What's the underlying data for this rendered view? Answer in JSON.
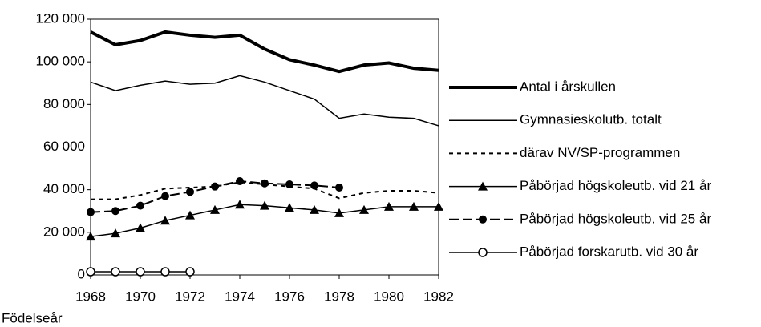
{
  "chart_data": {
    "type": "line",
    "x_label": "Födelseår",
    "x": [
      1968,
      1969,
      1970,
      1971,
      1972,
      1973,
      1974,
      1975,
      1976,
      1977,
      1978,
      1979,
      1980,
      1981,
      1982
    ],
    "xlim": [
      1968,
      1982
    ],
    "xticks": [
      1968,
      1970,
      1972,
      1974,
      1976,
      1978,
      1980,
      1982
    ],
    "ylim": [
      0,
      120000
    ],
    "yticks": [
      0,
      {
        "value": 20000,
        "label": "20 000"
      },
      {
        "value": 40000,
        "label": "40 000"
      },
      {
        "value": 60000,
        "label": "60 000"
      },
      {
        "value": 80000,
        "label": "80 000"
      },
      {
        "value": 100000,
        "label": "100 000"
      },
      {
        "value": 120000,
        "label": "120 000"
      }
    ],
    "series": [
      {
        "name": "Antal i årskullen",
        "color": "#000000",
        "width": 4,
        "dash": "none",
        "marker": "none",
        "values": [
          114000,
          108000,
          110000,
          114000,
          112500,
          111500,
          112500,
          106000,
          101000,
          98500,
          95500,
          98500,
          99500,
          97000,
          96000
        ]
      },
      {
        "name": "Gymnasieskolutb. totalt",
        "color": "#000000",
        "width": 1.5,
        "dash": "none",
        "marker": "none",
        "values": [
          90500,
          86500,
          89000,
          91000,
          89500,
          90000,
          93500,
          90500,
          86500,
          82500,
          73500,
          75500,
          74000,
          73500,
          70000
        ]
      },
      {
        "name": "därav NV/SP-programmen",
        "color": "#000000",
        "width": 2,
        "dash": "5 5",
        "marker": "none",
        "values": [
          35500,
          35500,
          37500,
          40500,
          41000,
          41500,
          43500,
          42500,
          41500,
          40500,
          36000,
          38500,
          39500,
          39500,
          38500
        ]
      },
      {
        "name": "Påbörjad högskoleutb. vid 21 år",
        "color": "#000000",
        "width": 1.5,
        "dash": "none",
        "marker": "triangle",
        "values": [
          18000,
          19500,
          22000,
          25500,
          28000,
          30500,
          33000,
          32500,
          31500,
          30500,
          29000,
          30500,
          32000,
          32000,
          32000
        ]
      },
      {
        "name": "Påbörjad högskoleutb. vid 25 år",
        "color": "#000000",
        "width": 2,
        "dash": "12 5",
        "marker": "circle",
        "values": [
          29500,
          30000,
          32500,
          37000,
          39000,
          41500,
          44000,
          43000,
          42500,
          42000,
          41000,
          null,
          null,
          null,
          null
        ]
      },
      {
        "name": "Påbörjad forskarutb. vid 30 år",
        "color": "#000000",
        "width": 1.5,
        "dash": "none",
        "marker": "open-circle",
        "values": [
          1500,
          1500,
          1500,
          1500,
          1500,
          null,
          null,
          null,
          null,
          null,
          null,
          null,
          null,
          null,
          null
        ]
      }
    ]
  }
}
